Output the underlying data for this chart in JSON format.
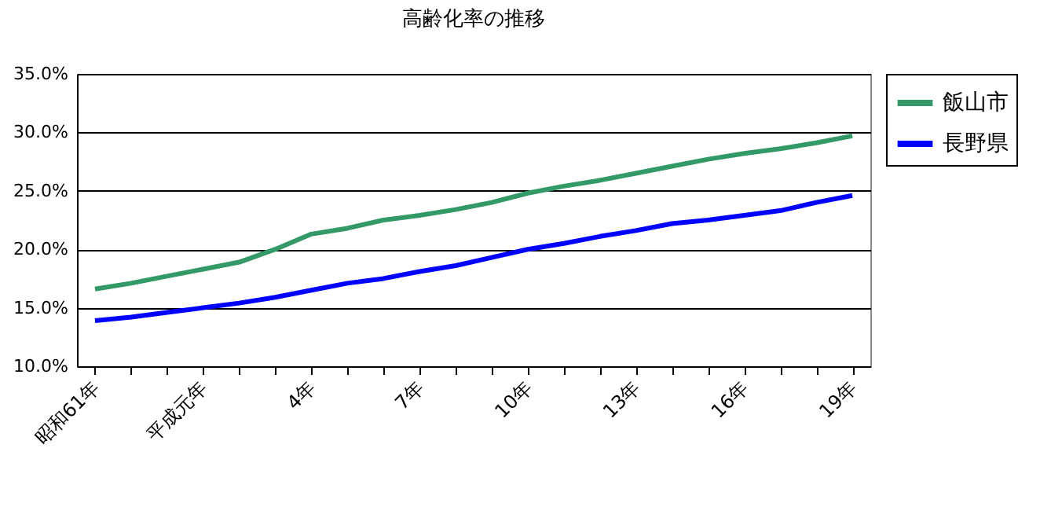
{
  "chart_data": {
    "type": "line",
    "title": "高齢化率の推移",
    "categories": [
      "昭和61年",
      null,
      null,
      "平成元年",
      null,
      null,
      "4年",
      null,
      null,
      "7年",
      null,
      null,
      "10年",
      null,
      null,
      "13年",
      null,
      null,
      "16年",
      null,
      null,
      "19年"
    ],
    "series": [
      {
        "name": "飯山市",
        "color": "#339966",
        "values": [
          16.6,
          17.1,
          17.7,
          18.3,
          18.9,
          20.0,
          21.3,
          21.8,
          22.5,
          22.9,
          23.4,
          24.0,
          24.8,
          25.4,
          25.9,
          26.5,
          27.1,
          27.7,
          28.2,
          28.6,
          29.1,
          29.7
        ]
      },
      {
        "name": "長野県",
        "color": "#0000ff",
        "values": [
          13.9,
          14.2,
          14.6,
          15.0,
          15.4,
          15.9,
          16.5,
          17.1,
          17.5,
          18.1,
          18.6,
          19.3,
          20.0,
          20.5,
          21.1,
          21.6,
          22.2,
          22.5,
          22.9,
          23.3,
          24.0,
          24.6
        ]
      }
    ],
    "ylim": [
      10,
      35
    ],
    "yticks": [
      {
        "value": 10,
        "label": "10.0%"
      },
      {
        "value": 15,
        "label": "15.0%"
      },
      {
        "value": 20,
        "label": "20.0%"
      },
      {
        "value": 25,
        "label": "25.0%"
      },
      {
        "value": 30,
        "label": "30.0%"
      },
      {
        "value": 35,
        "label": "35.0%"
      }
    ],
    "grid": "y",
    "legend": "right",
    "marker": "none",
    "line_style": "solid"
  }
}
